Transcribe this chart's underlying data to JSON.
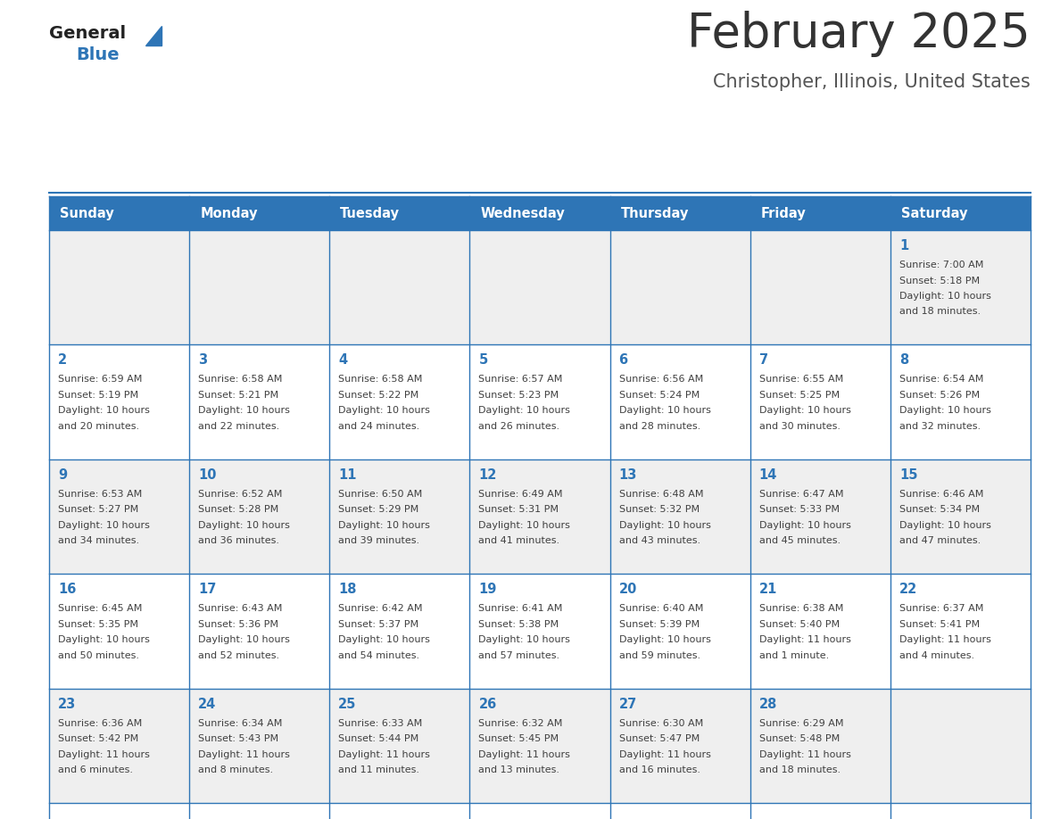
{
  "title": "February 2025",
  "subtitle": "Christopher, Illinois, United States",
  "days_of_week": [
    "Sunday",
    "Monday",
    "Tuesday",
    "Wednesday",
    "Thursday",
    "Friday",
    "Saturday"
  ],
  "header_bg": "#2E75B6",
  "header_text": "#FFFFFF",
  "cell_bg_row0": "#EFEFEF",
  "cell_bg_row1": "#FFFFFF",
  "cell_bg_row2": "#EFEFEF",
  "cell_bg_row3": "#FFFFFF",
  "cell_bg_row4": "#EFEFEF",
  "cell_text": "#404040",
  "day_number_color": "#2E75B6",
  "border_color": "#2E75B6",
  "title_color": "#333333",
  "subtitle_color": "#555555",
  "logo_general_color": "#222222",
  "logo_blue_color": "#2E75B6",
  "calendar_data": [
    {
      "day": 1,
      "col": 6,
      "row": 0,
      "sunrise": "7:00 AM",
      "sunset": "5:18 PM",
      "daylight": "10 hours",
      "daylight2": "and 18 minutes."
    },
    {
      "day": 2,
      "col": 0,
      "row": 1,
      "sunrise": "6:59 AM",
      "sunset": "5:19 PM",
      "daylight": "10 hours",
      "daylight2": "and 20 minutes."
    },
    {
      "day": 3,
      "col": 1,
      "row": 1,
      "sunrise": "6:58 AM",
      "sunset": "5:21 PM",
      "daylight": "10 hours",
      "daylight2": "and 22 minutes."
    },
    {
      "day": 4,
      "col": 2,
      "row": 1,
      "sunrise": "6:58 AM",
      "sunset": "5:22 PM",
      "daylight": "10 hours",
      "daylight2": "and 24 minutes."
    },
    {
      "day": 5,
      "col": 3,
      "row": 1,
      "sunrise": "6:57 AM",
      "sunset": "5:23 PM",
      "daylight": "10 hours",
      "daylight2": "and 26 minutes."
    },
    {
      "day": 6,
      "col": 4,
      "row": 1,
      "sunrise": "6:56 AM",
      "sunset": "5:24 PM",
      "daylight": "10 hours",
      "daylight2": "and 28 minutes."
    },
    {
      "day": 7,
      "col": 5,
      "row": 1,
      "sunrise": "6:55 AM",
      "sunset": "5:25 PM",
      "daylight": "10 hours",
      "daylight2": "and 30 minutes."
    },
    {
      "day": 8,
      "col": 6,
      "row": 1,
      "sunrise": "6:54 AM",
      "sunset": "5:26 PM",
      "daylight": "10 hours",
      "daylight2": "and 32 minutes."
    },
    {
      "day": 9,
      "col": 0,
      "row": 2,
      "sunrise": "6:53 AM",
      "sunset": "5:27 PM",
      "daylight": "10 hours",
      "daylight2": "and 34 minutes."
    },
    {
      "day": 10,
      "col": 1,
      "row": 2,
      "sunrise": "6:52 AM",
      "sunset": "5:28 PM",
      "daylight": "10 hours",
      "daylight2": "and 36 minutes."
    },
    {
      "day": 11,
      "col": 2,
      "row": 2,
      "sunrise": "6:50 AM",
      "sunset": "5:29 PM",
      "daylight": "10 hours",
      "daylight2": "and 39 minutes."
    },
    {
      "day": 12,
      "col": 3,
      "row": 2,
      "sunrise": "6:49 AM",
      "sunset": "5:31 PM",
      "daylight": "10 hours",
      "daylight2": "and 41 minutes."
    },
    {
      "day": 13,
      "col": 4,
      "row": 2,
      "sunrise": "6:48 AM",
      "sunset": "5:32 PM",
      "daylight": "10 hours",
      "daylight2": "and 43 minutes."
    },
    {
      "day": 14,
      "col": 5,
      "row": 2,
      "sunrise": "6:47 AM",
      "sunset": "5:33 PM",
      "daylight": "10 hours",
      "daylight2": "and 45 minutes."
    },
    {
      "day": 15,
      "col": 6,
      "row": 2,
      "sunrise": "6:46 AM",
      "sunset": "5:34 PM",
      "daylight": "10 hours",
      "daylight2": "and 47 minutes."
    },
    {
      "day": 16,
      "col": 0,
      "row": 3,
      "sunrise": "6:45 AM",
      "sunset": "5:35 PM",
      "daylight": "10 hours",
      "daylight2": "and 50 minutes."
    },
    {
      "day": 17,
      "col": 1,
      "row": 3,
      "sunrise": "6:43 AM",
      "sunset": "5:36 PM",
      "daylight": "10 hours",
      "daylight2": "and 52 minutes."
    },
    {
      "day": 18,
      "col": 2,
      "row": 3,
      "sunrise": "6:42 AM",
      "sunset": "5:37 PM",
      "daylight": "10 hours",
      "daylight2": "and 54 minutes."
    },
    {
      "day": 19,
      "col": 3,
      "row": 3,
      "sunrise": "6:41 AM",
      "sunset": "5:38 PM",
      "daylight": "10 hours",
      "daylight2": "and 57 minutes."
    },
    {
      "day": 20,
      "col": 4,
      "row": 3,
      "sunrise": "6:40 AM",
      "sunset": "5:39 PM",
      "daylight": "10 hours",
      "daylight2": "and 59 minutes."
    },
    {
      "day": 21,
      "col": 5,
      "row": 3,
      "sunrise": "6:38 AM",
      "sunset": "5:40 PM",
      "daylight": "11 hours",
      "daylight2": "and 1 minute."
    },
    {
      "day": 22,
      "col": 6,
      "row": 3,
      "sunrise": "6:37 AM",
      "sunset": "5:41 PM",
      "daylight": "11 hours",
      "daylight2": "and 4 minutes."
    },
    {
      "day": 23,
      "col": 0,
      "row": 4,
      "sunrise": "6:36 AM",
      "sunset": "5:42 PM",
      "daylight": "11 hours",
      "daylight2": "and 6 minutes."
    },
    {
      "day": 24,
      "col": 1,
      "row": 4,
      "sunrise": "6:34 AM",
      "sunset": "5:43 PM",
      "daylight": "11 hours",
      "daylight2": "and 8 minutes."
    },
    {
      "day": 25,
      "col": 2,
      "row": 4,
      "sunrise": "6:33 AM",
      "sunset": "5:44 PM",
      "daylight": "11 hours",
      "daylight2": "and 11 minutes."
    },
    {
      "day": 26,
      "col": 3,
      "row": 4,
      "sunrise": "6:32 AM",
      "sunset": "5:45 PM",
      "daylight": "11 hours",
      "daylight2": "and 13 minutes."
    },
    {
      "day": 27,
      "col": 4,
      "row": 4,
      "sunrise": "6:30 AM",
      "sunset": "5:47 PM",
      "daylight": "11 hours",
      "daylight2": "and 16 minutes."
    },
    {
      "day": 28,
      "col": 5,
      "row": 4,
      "sunrise": "6:29 AM",
      "sunset": "5:48 PM",
      "daylight": "11 hours",
      "daylight2": "and 18 minutes."
    }
  ]
}
